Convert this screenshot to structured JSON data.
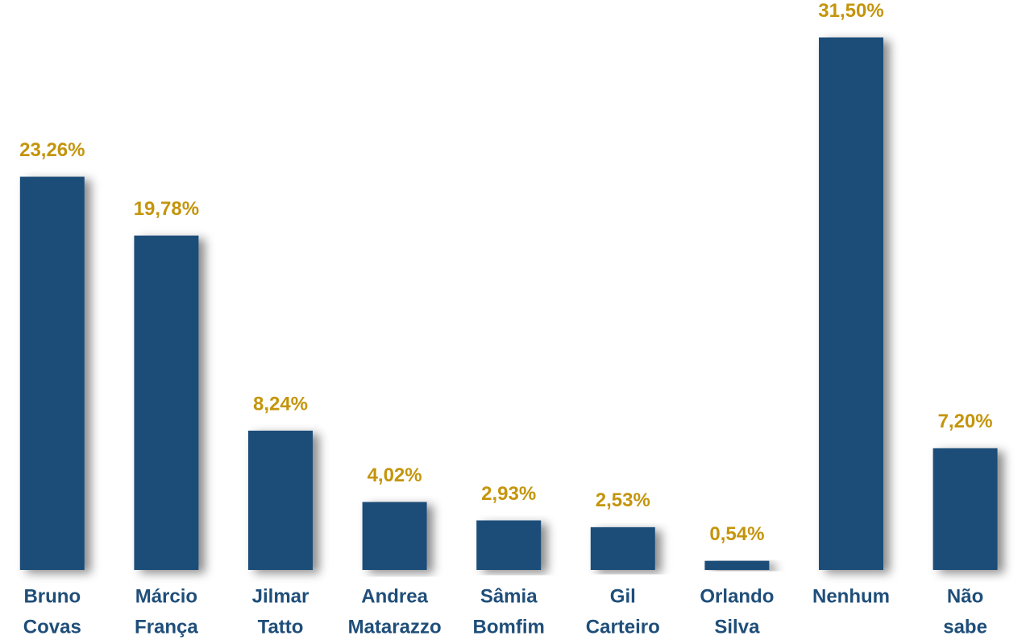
{
  "chart_data": {
    "type": "bar",
    "categories": [
      [
        "Bruno",
        "Covas"
      ],
      [
        "Márcio",
        "França"
      ],
      [
        "Jilmar",
        "Tatto"
      ],
      [
        "Andrea",
        "Matarazzo"
      ],
      [
        "Sâmia",
        "Bomfim"
      ],
      [
        "Gil",
        "Carteiro"
      ],
      [
        "Orlando",
        "Silva"
      ],
      [
        "Nenhum"
      ],
      [
        "Não",
        "sabe"
      ]
    ],
    "values": [
      23.26,
      19.78,
      8.24,
      4.02,
      2.93,
      2.53,
      0.54,
      31.5,
      7.2
    ],
    "value_labels": [
      "23,26%",
      "19,78%",
      "8,24%",
      "4,02%",
      "2,93%",
      "2,53%",
      "0,54%",
      "31,50%",
      "7,20%"
    ],
    "color": "#1f4e79",
    "ylim": [
      0,
      35
    ],
    "yticks": [
      0,
      5,
      10,
      15,
      20,
      25,
      30
    ],
    "grid": true
  }
}
